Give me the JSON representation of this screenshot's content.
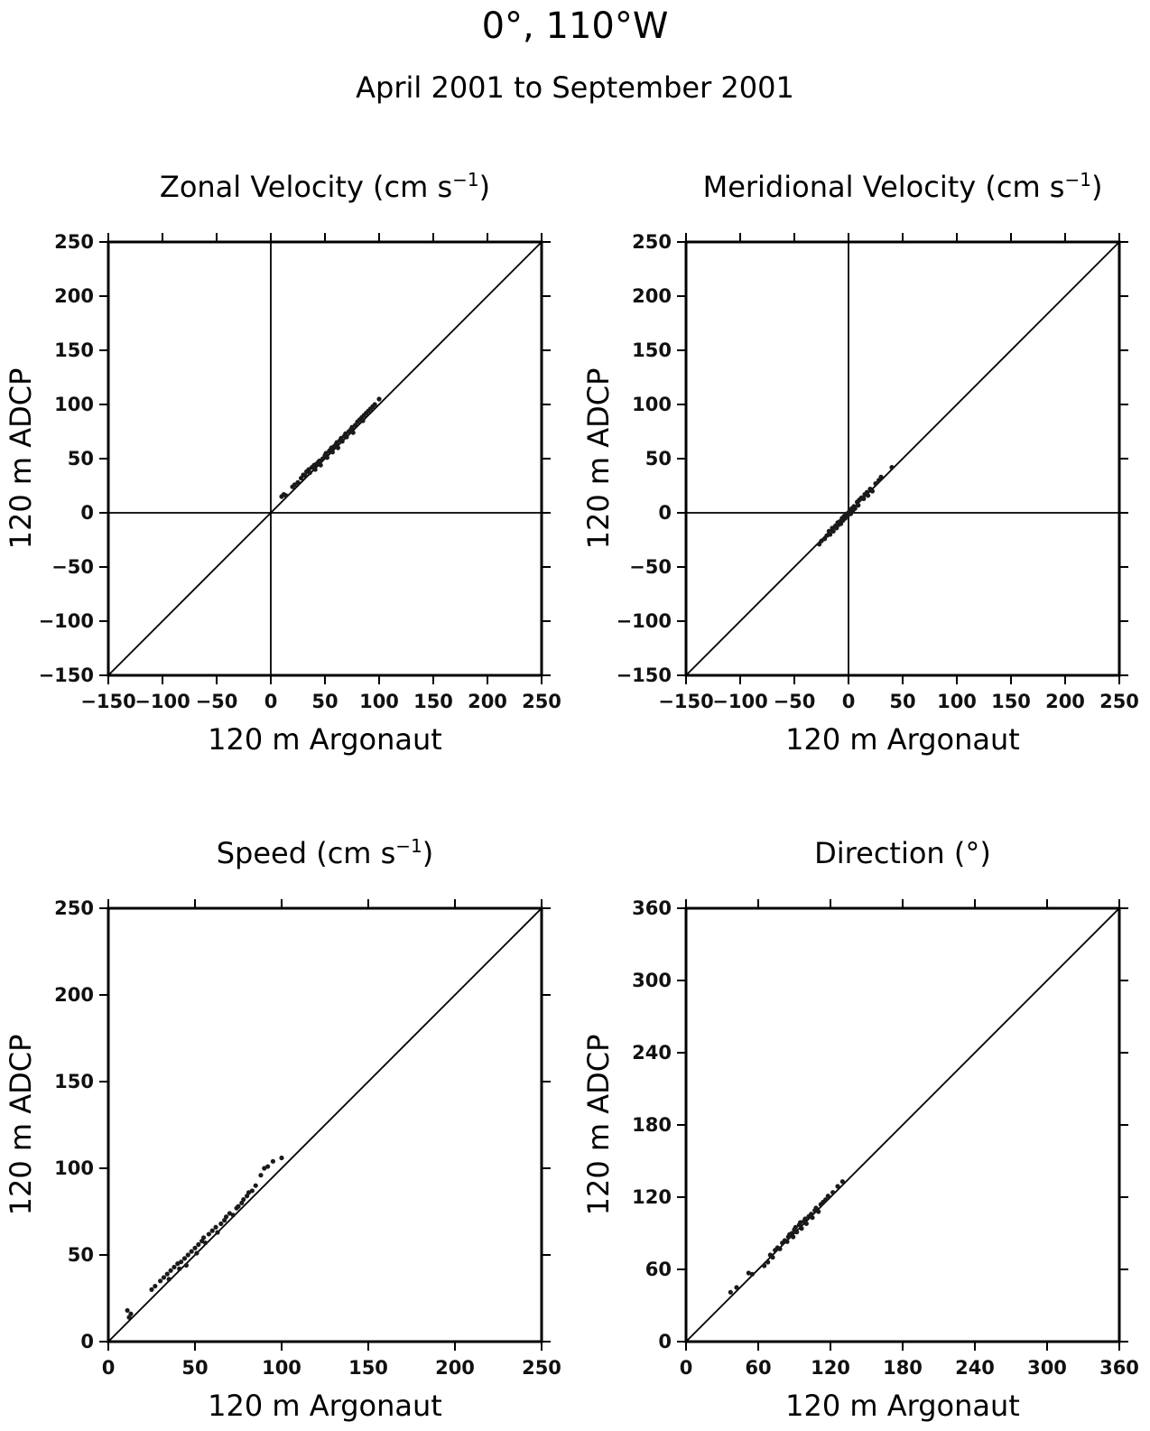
{
  "figure": {
    "title": "0°, 110°W",
    "subtitle": "April 2001 to September 2001"
  },
  "chart_data": [
    {
      "type": "scatter",
      "title": "Zonal Velocity (cm s",
      "title_sup": "−1",
      "title_end": ")",
      "xlabel": "120 m Argonaut",
      "ylabel": "120 m ADCP",
      "xlim": [
        -150,
        250
      ],
      "ylim": [
        -150,
        250
      ],
      "xticks": [
        -150,
        -100,
        -50,
        0,
        50,
        100,
        150,
        200,
        250
      ],
      "yticks": [
        -150,
        -100,
        -50,
        0,
        50,
        100,
        150,
        200,
        250
      ],
      "xtick_labels": [
        "−150",
        "−100",
        "−50",
        "0",
        "50",
        "100",
        "150",
        "200",
        "250"
      ],
      "ytick_labels": [
        "−150",
        "−100",
        "−50",
        "0",
        "50",
        "100",
        "150",
        "200",
        "250"
      ],
      "zero_lines": true,
      "one_to_one_line": true,
      "grid": false,
      "points": [
        [
          10,
          15
        ],
        [
          12,
          17
        ],
        [
          14,
          16
        ],
        [
          20,
          24
        ],
        [
          22,
          26
        ],
        [
          25,
          28
        ],
        [
          28,
          32
        ],
        [
          30,
          35
        ],
        [
          32,
          34
        ],
        [
          33,
          38
        ],
        [
          35,
          40
        ],
        [
          36,
          37
        ],
        [
          38,
          42
        ],
        [
          40,
          44
        ],
        [
          41,
          40
        ],
        [
          42,
          45
        ],
        [
          44,
          47
        ],
        [
          45,
          48
        ],
        [
          46,
          44
        ],
        [
          48,
          50
        ],
        [
          50,
          53
        ],
        [
          51,
          55
        ],
        [
          52,
          51
        ],
        [
          54,
          57
        ],
        [
          55,
          58
        ],
        [
          56,
          60
        ],
        [
          57,
          56
        ],
        [
          58,
          61
        ],
        [
          60,
          63
        ],
        [
          61,
          65
        ],
        [
          62,
          60
        ],
        [
          64,
          67
        ],
        [
          65,
          69
        ],
        [
          66,
          66
        ],
        [
          68,
          71
        ],
        [
          69,
          73
        ],
        [
          70,
          70
        ],
        [
          72,
          75
        ],
        [
          74,
          77
        ],
        [
          75,
          79
        ],
        [
          76,
          74
        ],
        [
          78,
          81
        ],
        [
          80,
          84
        ],
        [
          82,
          86
        ],
        [
          84,
          88
        ],
        [
          85,
          85
        ],
        [
          86,
          90
        ],
        [
          88,
          92
        ],
        [
          90,
          94
        ],
        [
          92,
          96
        ],
        [
          94,
          98
        ],
        [
          96,
          100
        ],
        [
          100,
          105
        ]
      ]
    },
    {
      "type": "scatter",
      "title": "Meridional Velocity (cm s",
      "title_sup": "−1",
      "title_end": ")",
      "xlabel": "120 m Argonaut",
      "ylabel": "120 m ADCP",
      "xlim": [
        -150,
        250
      ],
      "ylim": [
        -150,
        250
      ],
      "xticks": [
        -150,
        -100,
        -50,
        0,
        50,
        100,
        150,
        200,
        250
      ],
      "yticks": [
        -150,
        -100,
        -50,
        0,
        50,
        100,
        150,
        200,
        250
      ],
      "xtick_labels": [
        "−150",
        "−100",
        "−50",
        "0",
        "50",
        "100",
        "150",
        "200",
        "250"
      ],
      "ytick_labels": [
        "−150",
        "−100",
        "−50",
        "0",
        "50",
        "100",
        "150",
        "200",
        "250"
      ],
      "zero_lines": true,
      "one_to_one_line": true,
      "grid": false,
      "points": [
        [
          -27,
          -29
        ],
        [
          -25,
          -26
        ],
        [
          -22,
          -24
        ],
        [
          -20,
          -21
        ],
        [
          -18,
          -17
        ],
        [
          -17,
          -20
        ],
        [
          -15,
          -14
        ],
        [
          -14,
          -17
        ],
        [
          -12,
          -12
        ],
        [
          -11,
          -14
        ],
        [
          -10,
          -9
        ],
        [
          -9,
          -11
        ],
        [
          -8,
          -8
        ],
        [
          -7,
          -10
        ],
        [
          -6,
          -5
        ],
        [
          -5,
          -7
        ],
        [
          -4,
          -3
        ],
        [
          -3,
          -5
        ],
        [
          -2,
          -1
        ],
        [
          -1,
          -3
        ],
        [
          0,
          0
        ],
        [
          1,
          2
        ],
        [
          2,
          -1
        ],
        [
          3,
          4
        ],
        [
          4,
          2
        ],
        [
          5,
          6
        ],
        [
          6,
          4
        ],
        [
          8,
          10
        ],
        [
          9,
          7
        ],
        [
          10,
          12
        ],
        [
          12,
          14
        ],
        [
          14,
          13
        ],
        [
          15,
          17
        ],
        [
          17,
          19
        ],
        [
          18,
          16
        ],
        [
          20,
          22
        ],
        [
          22,
          20
        ],
        [
          25,
          27
        ],
        [
          28,
          30
        ],
        [
          30,
          33
        ],
        [
          40,
          42
        ]
      ]
    },
    {
      "type": "scatter",
      "title": "Speed (cm s",
      "title_sup": "−1",
      "title_end": ")",
      "xlabel": "120 m Argonaut",
      "ylabel": "120 m ADCP",
      "xlim": [
        0,
        250
      ],
      "ylim": [
        0,
        250
      ],
      "xticks": [
        0,
        50,
        100,
        150,
        200,
        250
      ],
      "yticks": [
        0,
        50,
        100,
        150,
        200,
        250
      ],
      "xtick_labels": [
        "0",
        "50",
        "100",
        "150",
        "200",
        "250"
      ],
      "ytick_labels": [
        "0",
        "50",
        "100",
        "150",
        "200",
        "250"
      ],
      "zero_lines": false,
      "one_to_one_line": true,
      "grid": false,
      "points": [
        [
          11,
          18
        ],
        [
          12,
          14
        ],
        [
          13,
          16
        ],
        [
          25,
          30
        ],
        [
          27,
          32
        ],
        [
          30,
          35
        ],
        [
          32,
          37
        ],
        [
          34,
          39
        ],
        [
          35,
          36
        ],
        [
          36,
          41
        ],
        [
          38,
          43
        ],
        [
          40,
          45
        ],
        [
          41,
          42
        ],
        [
          42,
          46
        ],
        [
          44,
          48
        ],
        [
          45,
          44
        ],
        [
          46,
          50
        ],
        [
          48,
          52
        ],
        [
          50,
          54
        ],
        [
          51,
          51
        ],
        [
          52,
          56
        ],
        [
          54,
          58
        ],
        [
          55,
          60
        ],
        [
          56,
          57
        ],
        [
          58,
          62
        ],
        [
          60,
          64
        ],
        [
          62,
          66
        ],
        [
          63,
          63
        ],
        [
          65,
          68
        ],
        [
          67,
          70
        ],
        [
          68,
          72
        ],
        [
          70,
          74
        ],
        [
          72,
          73
        ],
        [
          74,
          77
        ],
        [
          75,
          78
        ],
        [
          77,
          80
        ],
        [
          78,
          82
        ],
        [
          80,
          84
        ],
        [
          81,
          86
        ],
        [
          83,
          87
        ],
        [
          85,
          90
        ],
        [
          88,
          96
        ],
        [
          90,
          100
        ],
        [
          92,
          101
        ],
        [
          95,
          104
        ],
        [
          100,
          106
        ]
      ]
    },
    {
      "type": "scatter",
      "title": "Direction (°)",
      "xlabel": "120 m Argonaut",
      "ylabel": "120 m ADCP",
      "xlim": [
        0,
        360
      ],
      "ylim": [
        0,
        360
      ],
      "xticks": [
        0,
        60,
        120,
        180,
        240,
        300,
        360
      ],
      "yticks": [
        0,
        60,
        120,
        180,
        240,
        300,
        360
      ],
      "xtick_labels": [
        "0",
        "60",
        "120",
        "180",
        "240",
        "300",
        "360"
      ],
      "ytick_labels": [
        "0",
        "60",
        "120",
        "180",
        "240",
        "300",
        "360"
      ],
      "zero_lines": false,
      "one_to_one_line": true,
      "grid": false,
      "points": [
        [
          37,
          41
        ],
        [
          42,
          45
        ],
        [
          52,
          57
        ],
        [
          55,
          56
        ],
        [
          65,
          63
        ],
        [
          68,
          66
        ],
        [
          70,
          72
        ],
        [
          72,
          70
        ],
        [
          74,
          76
        ],
        [
          76,
          78
        ],
        [
          78,
          77
        ],
        [
          80,
          82
        ],
        [
          82,
          84
        ],
        [
          84,
          83
        ],
        [
          85,
          87
        ],
        [
          86,
          89
        ],
        [
          88,
          90
        ],
        [
          89,
          87
        ],
        [
          90,
          93
        ],
        [
          91,
          95
        ],
        [
          92,
          91
        ],
        [
          94,
          97
        ],
        [
          95,
          99
        ],
        [
          96,
          94
        ],
        [
          98,
          100
        ],
        [
          99,
          102
        ],
        [
          100,
          98
        ],
        [
          102,
          104
        ],
        [
          104,
          106
        ],
        [
          105,
          103
        ],
        [
          107,
          109
        ],
        [
          108,
          111
        ],
        [
          110,
          108
        ],
        [
          112,
          114
        ],
        [
          114,
          116
        ],
        [
          116,
          118
        ],
        [
          118,
          121
        ],
        [
          122,
          124
        ],
        [
          126,
          129
        ],
        [
          130,
          133
        ]
      ]
    }
  ]
}
